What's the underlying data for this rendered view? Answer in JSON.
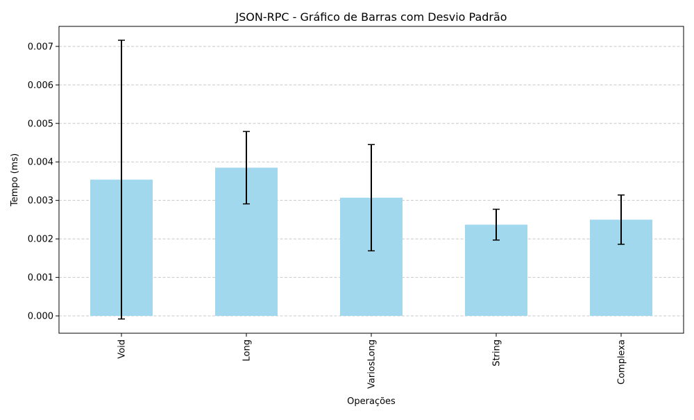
{
  "chart_data": {
    "type": "bar",
    "title": "JSON-RPC - Gráfico de Barras com Desvio Padrão",
    "xlabel": "Operações",
    "ylabel": "Tempo (ms)",
    "categories": [
      "Void",
      "Long",
      "VariosLong",
      "String",
      "Complexa"
    ],
    "values": [
      0.00354,
      0.00385,
      0.00307,
      0.00237,
      0.0025
    ],
    "error": [
      0.00362,
      0.00094,
      0.00138,
      0.0004,
      0.00064
    ],
    "ylim": [
      -0.00045,
      0.00752
    ],
    "yticks": [
      "0.000",
      "0.001",
      "0.002",
      "0.003",
      "0.004",
      "0.005",
      "0.006",
      "0.007"
    ],
    "grid": "y-dashed",
    "bar_color": "#a2d8ed",
    "error_color": "#000000",
    "grid_color": "#c8c8c8"
  }
}
